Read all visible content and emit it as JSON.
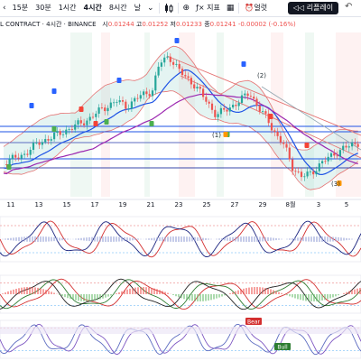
{
  "toolbar": {
    "timeframes": [
      "15분",
      "30분",
      "1시간",
      "4시간",
      "8시간",
      "날"
    ],
    "active_timeframe": "4시간",
    "indicator_label": "지표",
    "alert_label": "얼럿",
    "replay_label": "리플레이",
    "undo_symbol": "↶",
    "more_symbol": "⌄"
  },
  "legend": {
    "symbol": "L CONTRACT · 4시간 · BINANCE",
    "open_label": "시",
    "open": "0.01244",
    "high_label": "고",
    "high": "0.01252",
    "low_label": "저",
    "low": "0.01233",
    "close_label": "종",
    "close": "0.01241",
    "change": "-0.00002 (-0.16%)"
  },
  "x_axis": {
    "labels": [
      "11",
      "13",
      "15",
      "17",
      "19",
      "21",
      "23",
      "25",
      "27",
      "29",
      "8월",
      "3",
      "5"
    ]
  },
  "wave_labels": [
    "(1)",
    "(2)",
    "(3)"
  ],
  "signal_labels": {
    "bear": "Bear",
    "bull": "Bull"
  },
  "colors": {
    "up": "#26a69a",
    "down": "#ef5350",
    "bb": "#e57373",
    "ma_blue": "#1e53e5",
    "ma_purple": "#9c27b0",
    "replay_bg": "#131722"
  }
}
